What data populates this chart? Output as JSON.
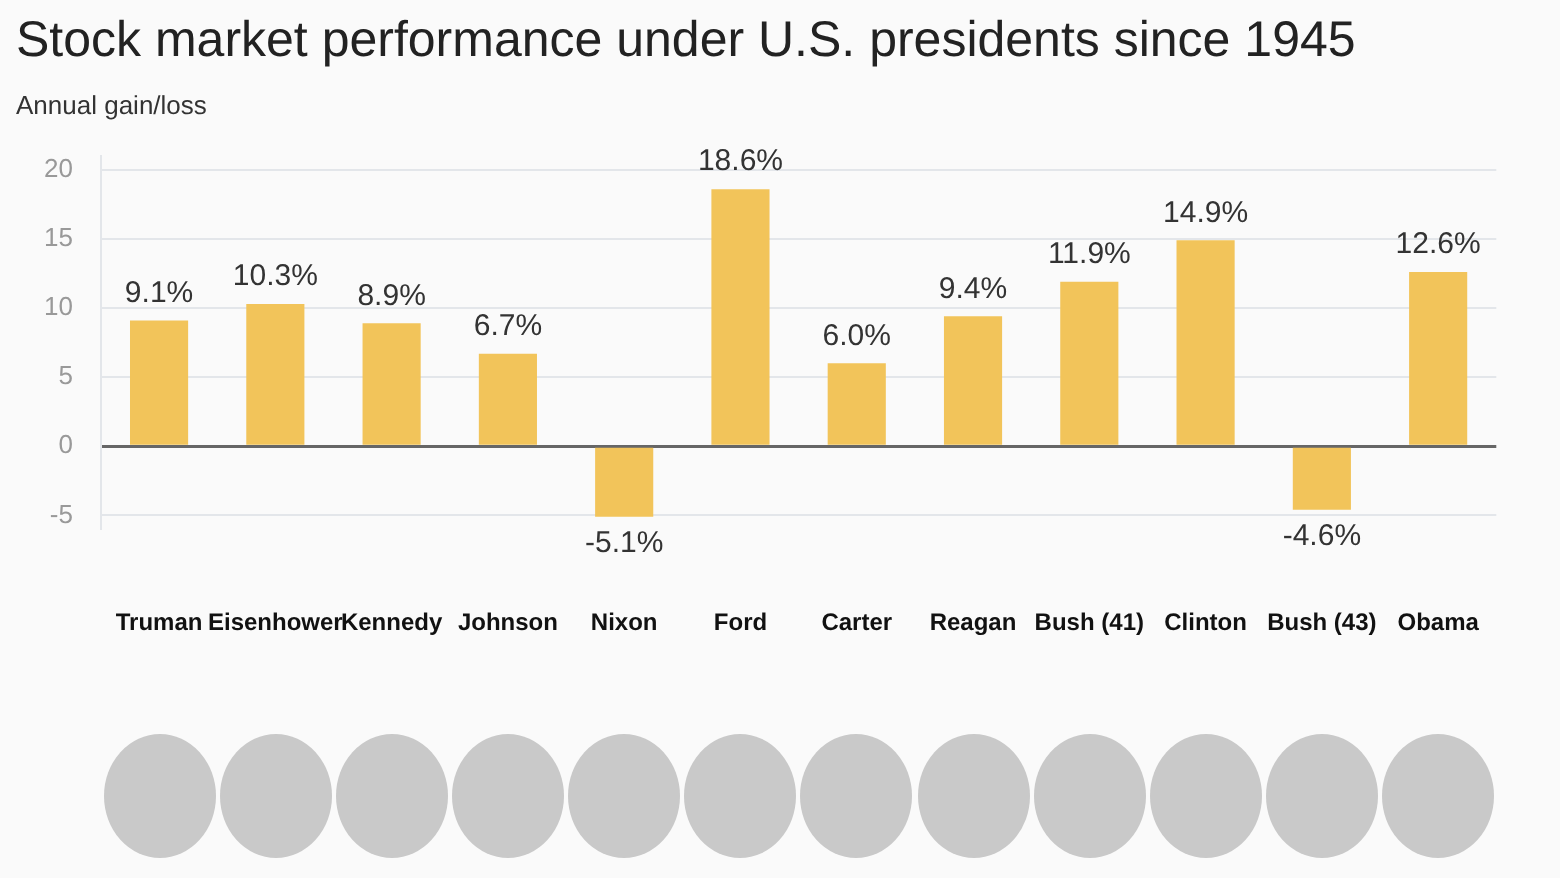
{
  "chart_data": {
    "type": "bar",
    "title": "Stock market performance under U.S. presidents since 1945",
    "ylabel": "Annual gain/loss",
    "categories": [
      "Truman",
      "Eisenhower",
      "Kennedy",
      "Johnson",
      "Nixon",
      "Ford",
      "Carter",
      "Reagan",
      "Bush (41)",
      "Clinton",
      "Bush (43)",
      "Obama"
    ],
    "values": [
      9.1,
      10.3,
      8.9,
      6.7,
      -5.1,
      18.6,
      6.0,
      9.4,
      11.9,
      14.9,
      -4.6,
      12.6
    ],
    "value_labels": [
      "9.1%",
      "10.3%",
      "8.9%",
      "6.7%",
      "-5.1%",
      "18.6%",
      "6.0%",
      "9.4%",
      "11.9%",
      "14.9%",
      "-4.6%",
      "12.6%"
    ],
    "color": "#f2c45a",
    "ylim": [
      -6,
      21
    ],
    "yticks": [
      -5,
      0,
      5,
      10,
      15,
      20
    ],
    "grid": "y",
    "legend": false
  }
}
